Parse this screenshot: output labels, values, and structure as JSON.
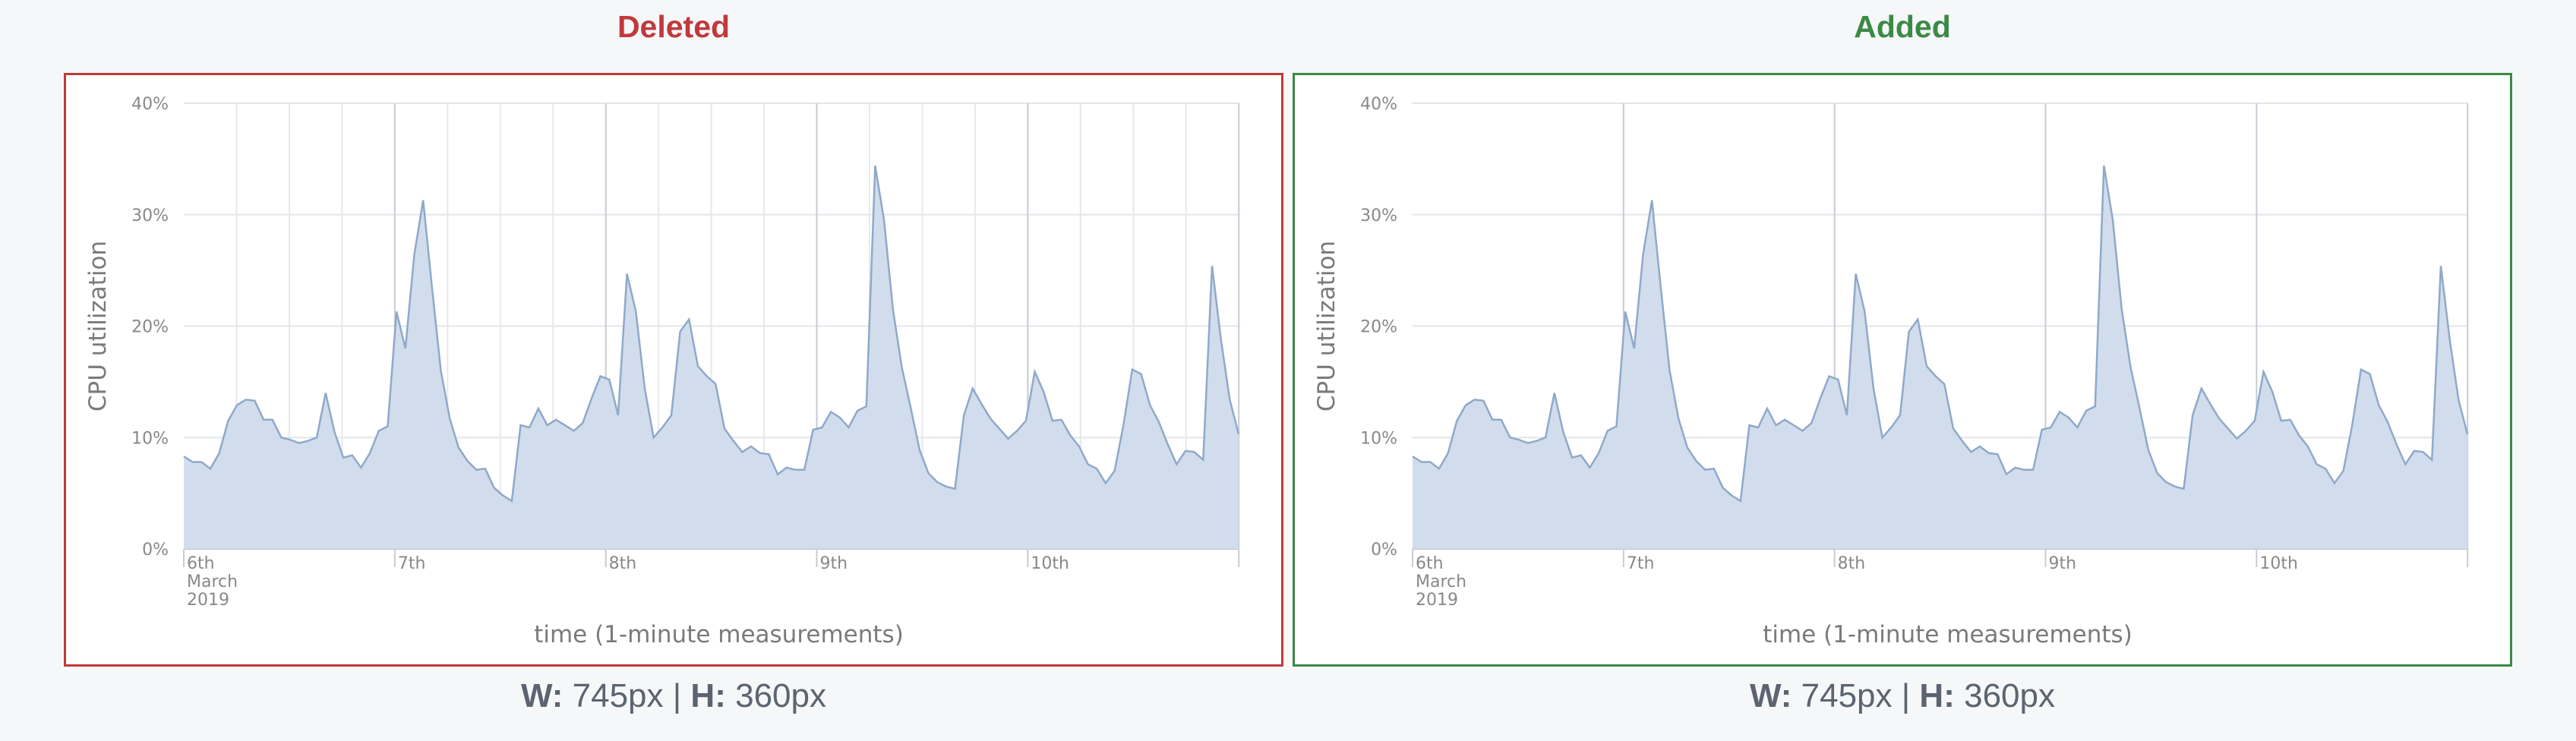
{
  "panels": [
    {
      "title": "Deleted",
      "accent": "#c0393b",
      "dims": {
        "w_label": "W:",
        "w_value": "745px",
        "sep": "|",
        "h_label": "H:",
        "h_value": "360px"
      }
    },
    {
      "title": "Added",
      "accent": "#3a8a45",
      "dims": {
        "w_label": "W:",
        "w_value": "745px",
        "sep": "|",
        "h_label": "H:",
        "h_value": "360px"
      }
    }
  ],
  "chart_data": {
    "type": "area",
    "title": "",
    "xlabel": "time (1-minute measurements)",
    "ylabel": "CPU utilization",
    "x_start": "2019-03-06T00:00",
    "x_end": "2019-03-10T23:59",
    "ylim": [
      0,
      40
    ],
    "y_ticks": [
      "0%",
      "10%",
      "20%",
      "30%",
      "40%"
    ],
    "x_tick_labels": [
      {
        "label": "6th",
        "sub": [
          "March",
          "2019"
        ]
      },
      {
        "label": "7th",
        "sub": []
      },
      {
        "label": "8th",
        "sub": []
      },
      {
        "label": "9th",
        "sub": []
      },
      {
        "label": "10th",
        "sub": []
      }
    ],
    "grid": true,
    "fill_color": "#d1ddec",
    "line_color": "#8fa9c9",
    "series": [
      {
        "values": [
          8.3,
          7.8,
          7.8,
          7.2,
          8.6,
          11.5,
          12.9,
          13.4,
          13.3,
          11.6,
          11.6,
          10.0,
          9.8,
          9.5,
          9.7,
          10.0,
          14.0,
          10.5,
          8.2,
          8.4,
          7.3,
          8.6,
          10.6,
          11.0,
          21.3,
          18.0,
          26.4,
          31.3,
          23.5,
          16.0,
          11.7,
          9.1,
          7.9,
          7.1,
          7.2,
          5.5,
          4.8,
          4.3,
          11.1,
          10.9,
          12.6,
          11.1,
          11.6,
          11.1,
          10.6,
          11.3,
          13.5,
          15.5,
          15.2,
          12.0,
          24.7,
          21.3,
          14.4,
          10.0,
          10.9,
          12.0,
          19.5,
          20.6,
          16.4,
          15.5,
          14.8,
          10.8,
          9.7,
          8.7,
          9.2,
          8.6,
          8.5,
          6.7,
          7.3,
          7.1,
          7.1,
          10.7,
          10.9,
          12.3,
          11.8,
          10.9,
          12.4,
          12.8,
          34.4,
          29.5,
          21.5,
          16.3,
          12.7,
          8.9,
          6.8,
          6.0,
          5.6,
          5.4,
          12.0,
          14.4,
          13.0,
          11.7,
          10.8,
          9.9,
          10.6,
          11.5,
          15.9,
          14.1,
          11.5,
          11.6,
          10.2,
          9.2,
          7.6,
          7.2,
          5.9,
          7.0,
          11.1,
          16.1,
          15.7,
          12.9,
          11.4,
          9.4,
          7.6,
          8.8,
          8.7,
          8.0,
          25.4,
          18.8,
          13.4,
          10.3
        ]
      }
    ]
  }
}
